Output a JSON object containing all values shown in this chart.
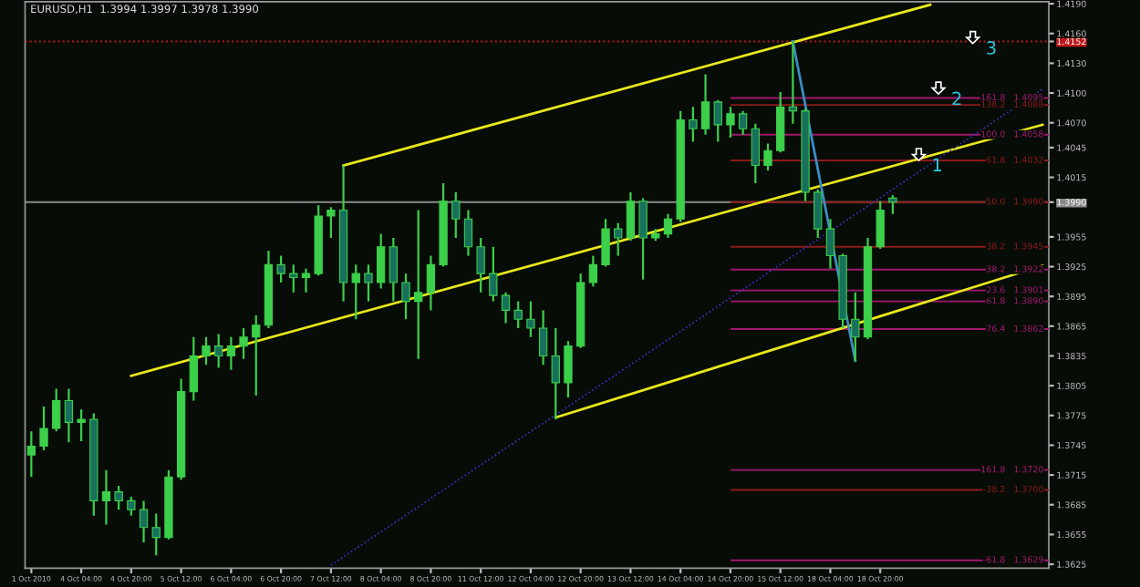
{
  "chart_data": {
    "type": "candlestick",
    "title": "EURUSD,H1  1.3994 1.3997 1.3978 1.3990",
    "categories": [
      "1 Oct 2010",
      null,
      null,
      null,
      "4 Oct 04:00",
      null,
      null,
      null,
      "4 Oct 20:00",
      null,
      null,
      null,
      "5 Oct 12:00",
      null,
      null,
      null,
      "6 Oct 04:00",
      null,
      null,
      null,
      "6 Oct 20:00",
      null,
      null,
      null,
      "7 Oct 12:00",
      null,
      null,
      null,
      "8 Oct 04:00",
      null,
      null,
      null,
      "8 Oct 20:00",
      null,
      null,
      null,
      "11 Oct 12:00",
      null,
      null,
      null,
      "12 Oct 04:00",
      null,
      null,
      null,
      "12 Oct 20:00",
      null,
      null,
      null,
      "13 Oct 12:00",
      null,
      null,
      null,
      "14 Oct 04:00",
      null,
      null,
      null,
      "14 Oct 20:00",
      null,
      null,
      null,
      "15 Oct 12:00",
      null,
      null,
      null,
      "18 Oct 04:00",
      null,
      null,
      null,
      "18 Oct 20:00",
      null,
      null,
      null,
      null,
      null,
      null,
      null,
      null,
      null,
      null,
      null,
      null,
      null
    ],
    "color": "#3ccf4a",
    "ohlc": [
      [
        1.3735,
        1.3759,
        1.3713,
        1.3744
      ],
      [
        1.3744,
        1.3784,
        1.374,
        1.3762
      ],
      [
        1.3762,
        1.3802,
        1.3759,
        1.379
      ],
      [
        1.379,
        1.3802,
        1.3748,
        1.3768
      ],
      [
        1.3768,
        1.3781,
        1.3749,
        1.3771
      ],
      [
        1.3771,
        1.3777,
        1.3674,
        1.3689
      ],
      [
        1.3689,
        1.372,
        1.3665,
        1.3698
      ],
      [
        1.3698,
        1.3704,
        1.368,
        1.3689
      ],
      [
        1.3689,
        1.3693,
        1.3674,
        1.368
      ],
      [
        1.368,
        1.3689,
        1.3647,
        1.3662
      ],
      [
        1.3662,
        1.3676,
        1.3634,
        1.3652
      ],
      [
        1.3652,
        1.372,
        1.365,
        1.3713
      ],
      [
        1.3713,
        1.3812,
        1.371,
        1.3799
      ],
      [
        1.3799,
        1.3854,
        1.379,
        1.3835
      ],
      [
        1.3835,
        1.3854,
        1.3826,
        1.3845
      ],
      [
        1.3845,
        1.3857,
        1.3823,
        1.3835
      ],
      [
        1.3835,
        1.3854,
        1.3821,
        1.3845
      ],
      [
        1.3845,
        1.3863,
        1.3832,
        1.3854
      ],
      [
        1.3854,
        1.3876,
        1.3795,
        1.3866
      ],
      [
        1.3866,
        1.3941,
        1.3863,
        1.3927
      ],
      [
        1.3927,
        1.3936,
        1.3909,
        1.3918
      ],
      [
        1.3918,
        1.3927,
        1.3899,
        1.3914
      ],
      [
        1.3914,
        1.3923,
        1.3899,
        1.3918
      ],
      [
        1.3918,
        1.3987,
        1.3916,
        1.3976
      ],
      [
        1.3976,
        1.3985,
        1.3954,
        1.3982
      ],
      [
        1.3982,
        1.4027,
        1.389,
        1.3909
      ],
      [
        1.3909,
        1.3927,
        1.3872,
        1.3918
      ],
      [
        1.3918,
        1.3927,
        1.389,
        1.3909
      ],
      [
        1.3909,
        1.3958,
        1.3903,
        1.3945
      ],
      [
        1.3945,
        1.3954,
        1.389,
        1.3909
      ],
      [
        1.3909,
        1.3918,
        1.3872,
        1.389
      ],
      [
        1.389,
        1.3982,
        1.3832,
        1.3899
      ],
      [
        1.3899,
        1.3936,
        1.3881,
        1.3927
      ],
      [
        1.3927,
        1.4009,
        1.3925,
        1.3991
      ],
      [
        1.3991,
        1.4,
        1.3954,
        1.3973
      ],
      [
        1.3973,
        1.3982,
        1.3936,
        1.3945
      ],
      [
        1.3945,
        1.3954,
        1.3899,
        1.3918
      ],
      [
        1.3918,
        1.3945,
        1.389,
        1.3896
      ],
      [
        1.3896,
        1.3899,
        1.3868,
        1.3881
      ],
      [
        1.3881,
        1.389,
        1.3863,
        1.3872
      ],
      [
        1.3872,
        1.389,
        1.3854,
        1.3863
      ],
      [
        1.3863,
        1.3881,
        1.3826,
        1.3835
      ],
      [
        1.3835,
        1.3863,
        1.3771,
        1.3808
      ],
      [
        1.3808,
        1.385,
        1.3793,
        1.3845
      ],
      [
        1.3845,
        1.3918,
        1.3843,
        1.3909
      ],
      [
        1.3909,
        1.3936,
        1.3905,
        1.3927
      ],
      [
        1.3927,
        1.3973,
        1.3925,
        1.3963
      ],
      [
        1.3963,
        1.3969,
        1.3936,
        1.3954
      ],
      [
        1.3954,
        1.4,
        1.3951,
        1.3991
      ],
      [
        1.3991,
        1.3994,
        1.3912,
        1.3954
      ],
      [
        1.3954,
        1.3963,
        1.3951,
        1.3958
      ],
      [
        1.3958,
        1.3978,
        1.3954,
        1.3973
      ],
      [
        1.3973,
        1.4082,
        1.397,
        1.4073
      ],
      [
        1.4073,
        1.4086,
        1.4051,
        1.4064
      ],
      [
        1.4064,
        1.4119,
        1.4058,
        1.4091
      ],
      [
        1.4091,
        1.4093,
        1.4051,
        1.4068
      ],
      [
        1.4068,
        1.4086,
        1.4055,
        1.4079
      ],
      [
        1.4079,
        1.4082,
        1.4058,
        1.4064
      ],
      [
        1.4064,
        1.4069,
        1.4009,
        1.4027
      ],
      [
        1.4027,
        1.4049,
        1.4022,
        1.4042
      ],
      [
        1.4042,
        1.4101,
        1.404,
        1.4086
      ],
      [
        1.4086,
        1.4152,
        1.4069,
        1.4082
      ],
      [
        1.4082,
        1.4084,
        1.3991,
        1.4
      ],
      [
        1.4,
        1.4003,
        1.3954,
        1.3963
      ],
      [
        1.3963,
        1.3973,
        1.3923,
        1.3936
      ],
      [
        1.3936,
        1.3938,
        1.3863,
        1.3872
      ],
      [
        1.3872,
        1.3899,
        1.383,
        1.3854
      ],
      [
        1.3854,
        1.3954,
        1.3852,
        1.3945
      ],
      [
        1.3945,
        1.3991,
        1.3943,
        1.3982
      ],
      [
        1.3994,
        1.3997,
        1.3978,
        1.399
      ],
      null,
      null,
      null,
      null,
      null,
      null,
      null,
      null,
      null,
      null,
      null,
      null
    ],
    "series": [
      {
        "type": "line",
        "color": "#e8e81a",
        "values": [
          null,
          null,
          null,
          null,
          null,
          null,
          null,
          null,
          null,
          null,
          null,
          null,
          null,
          null,
          null,
          null,
          null,
          null,
          null,
          null,
          null,
          null,
          null,
          null,
          null,
          1.4027,
          null,
          null,
          null,
          null,
          null,
          null,
          null,
          null,
          null,
          null,
          null,
          null,
          null,
          null,
          null,
          null,
          null,
          null,
          null,
          null,
          null,
          null,
          null,
          null,
          null,
          null,
          null,
          null,
          null,
          null,
          null,
          null,
          null,
          null,
          null,
          null,
          null,
          null,
          null,
          null,
          null,
          null,
          null,
          null,
          null,
          null,
          1.4189,
          null,
          null,
          null,
          null,
          null,
          null,
          null,
          null,
          null
        ]
      },
      {
        "type": "line",
        "color": "#e8e81a",
        "values": [
          null,
          null,
          null,
          null,
          null,
          null,
          null,
          null,
          1.3815,
          null,
          null,
          null,
          null,
          null,
          null,
          null,
          null,
          null,
          null,
          null,
          null,
          null,
          null,
          null,
          null,
          null,
          null,
          null,
          null,
          null,
          null,
          null,
          null,
          null,
          null,
          null,
          null,
          null,
          null,
          null,
          null,
          null,
          null,
          null,
          null,
          null,
          null,
          null,
          null,
          null,
          null,
          null,
          null,
          null,
          null,
          null,
          null,
          null,
          null,
          null,
          null,
          null,
          null,
          null,
          null,
          null,
          null,
          null,
          null,
          null,
          null,
          null,
          null,
          null,
          null,
          null,
          null,
          null,
          null,
          null,
          null,
          1.4068
        ]
      },
      {
        "type": "line",
        "color": "#e8e81a",
        "values": [
          null,
          null,
          null,
          null,
          null,
          null,
          null,
          null,
          null,
          null,
          null,
          null,
          null,
          null,
          null,
          null,
          null,
          null,
          null,
          null,
          null,
          null,
          null,
          null,
          null,
          null,
          null,
          null,
          null,
          null,
          null,
          null,
          null,
          null,
          null,
          null,
          null,
          null,
          null,
          null,
          null,
          null,
          1.3773,
          null,
          null,
          null,
          null,
          null,
          null,
          null,
          null,
          null,
          null,
          null,
          null,
          null,
          null,
          null,
          null,
          null,
          null,
          null,
          null,
          null,
          null,
          null,
          null,
          null,
          null,
          null,
          null,
          null,
          null,
          null,
          null,
          null,
          null,
          null,
          null,
          null,
          null,
          1.3926
        ]
      },
      {
        "type": "line",
        "color": "#3535c8",
        "line_style": "dotted",
        "values": [
          null,
          null,
          null,
          null,
          null,
          null,
          null,
          null,
          null,
          null,
          null,
          null,
          null,
          null,
          null,
          null,
          null,
          null,
          null,
          null,
          null,
          null,
          null,
          null,
          1.3624,
          null,
          null,
          null,
          null,
          null,
          null,
          null,
          null,
          null,
          null,
          null,
          null,
          null,
          null,
          null,
          null,
          null,
          null,
          null,
          null,
          null,
          null,
          null,
          null,
          null,
          null,
          null,
          null,
          null,
          null,
          null,
          null,
          null,
          null,
          null,
          null,
          null,
          null,
          null,
          null,
          null,
          null,
          null,
          null,
          null,
          null,
          null,
          null,
          null,
          null,
          null,
          null,
          null,
          null,
          null,
          null,
          1.4104
        ]
      },
      {
        "type": "line",
        "color": "#3b8dc4",
        "values": [
          null,
          null,
          null,
          null,
          null,
          null,
          null,
          null,
          null,
          null,
          null,
          null,
          null,
          null,
          null,
          null,
          null,
          null,
          null,
          null,
          null,
          null,
          null,
          null,
          null,
          null,
          null,
          null,
          null,
          null,
          null,
          null,
          null,
          null,
          null,
          null,
          null,
          null,
          null,
          null,
          null,
          null,
          null,
          null,
          null,
          null,
          null,
          null,
          null,
          null,
          null,
          null,
          null,
          null,
          null,
          null,
          null,
          null,
          null,
          null,
          null,
          1.4152,
          null,
          null,
          null,
          null,
          1.383,
          null,
          null,
          null,
          null,
          null,
          null,
          null,
          null,
          null,
          null,
          null,
          null,
          null,
          null,
          null
        ]
      }
    ],
    "ylim": [
      1.3621,
      1.4192
    ],
    "yticks": [
      {
        "value": 1.419,
        "label": "1.4190"
      },
      {
        "value": 1.416,
        "label": "1.4160"
      },
      {
        "value": 1.4152,
        "label": "1.4152"
      },
      {
        "value": 1.413,
        "label": "1.4130"
      },
      {
        "value": 1.41,
        "label": "1.4100"
      },
      {
        "value": 1.407,
        "label": "1.4070"
      },
      1.4045,
      1.4015,
      {
        "value": 1.399,
        "label": "1.3990"
      },
      1.3955,
      1.3925,
      1.3895,
      1.3865,
      1.3835,
      1.3805,
      1.3775,
      1.3745,
      1.3715,
      1.3685,
      1.3655,
      1.3625
    ],
    "ref_lines": [
      {
        "axis": "y",
        "value": 1.4152,
        "color": "#c0181a",
        "line_style": "dotted"
      },
      {
        "axis": "y",
        "value": 1.399,
        "color": "#8a8a8a",
        "line_style": "solid"
      },
      {
        "axis": "y",
        "value": 1.4095,
        "label": "161.8   1.4095",
        "color": "#a0186e"
      },
      {
        "axis": "y",
        "value": 1.4088,
        "label": "138.2   1.4088",
        "color": "#8b1a1a"
      },
      {
        "axis": "y",
        "value": 1.4058,
        "label": "100.0   1.4058",
        "color": "#a0186e"
      },
      {
        "axis": "y",
        "value": 1.4032,
        "label": "61.8   1.4032",
        "color": "#8b1a1a"
      },
      {
        "axis": "y",
        "value": 1.399,
        "label": "50.0   1.3990",
        "color": "#8b1a1a"
      },
      {
        "axis": "y",
        "value": 1.3945,
        "label": "38.2   1.3945",
        "color": "#8b1a1a"
      },
      {
        "axis": "y",
        "value": 1.3922,
        "label": "38.2   1.3922",
        "color": "#a0186e"
      },
      {
        "axis": "y",
        "value": 1.3901,
        "label": "23.6   1.3901",
        "color": "#a0186e"
      },
      {
        "axis": "y",
        "value": 1.389,
        "label": "61.8   1.3890",
        "color": "#a0186e"
      },
      {
        "axis": "y",
        "value": 1.3862,
        "label": "76.4   1.3862",
        "color": "#a0186e"
      },
      {
        "axis": "y",
        "value": 1.372,
        "label": "161.8   1.3720",
        "color": "#a0186e"
      },
      {
        "axis": "y",
        "value": 1.37,
        "label": "-38.2   1.3700",
        "color": "#8b1a1a"
      },
      {
        "axis": "y",
        "value": 1.3629,
        "label": "-61.8   1.3629",
        "color": "#a0186e"
      }
    ],
    "annotations": [
      {
        "text": "1",
        "y": 1.4026
      },
      {
        "text": "2",
        "y": 1.4093
      },
      {
        "text": "3",
        "y": 1.4144
      }
    ],
    "grid": false,
    "legend": false
  }
}
